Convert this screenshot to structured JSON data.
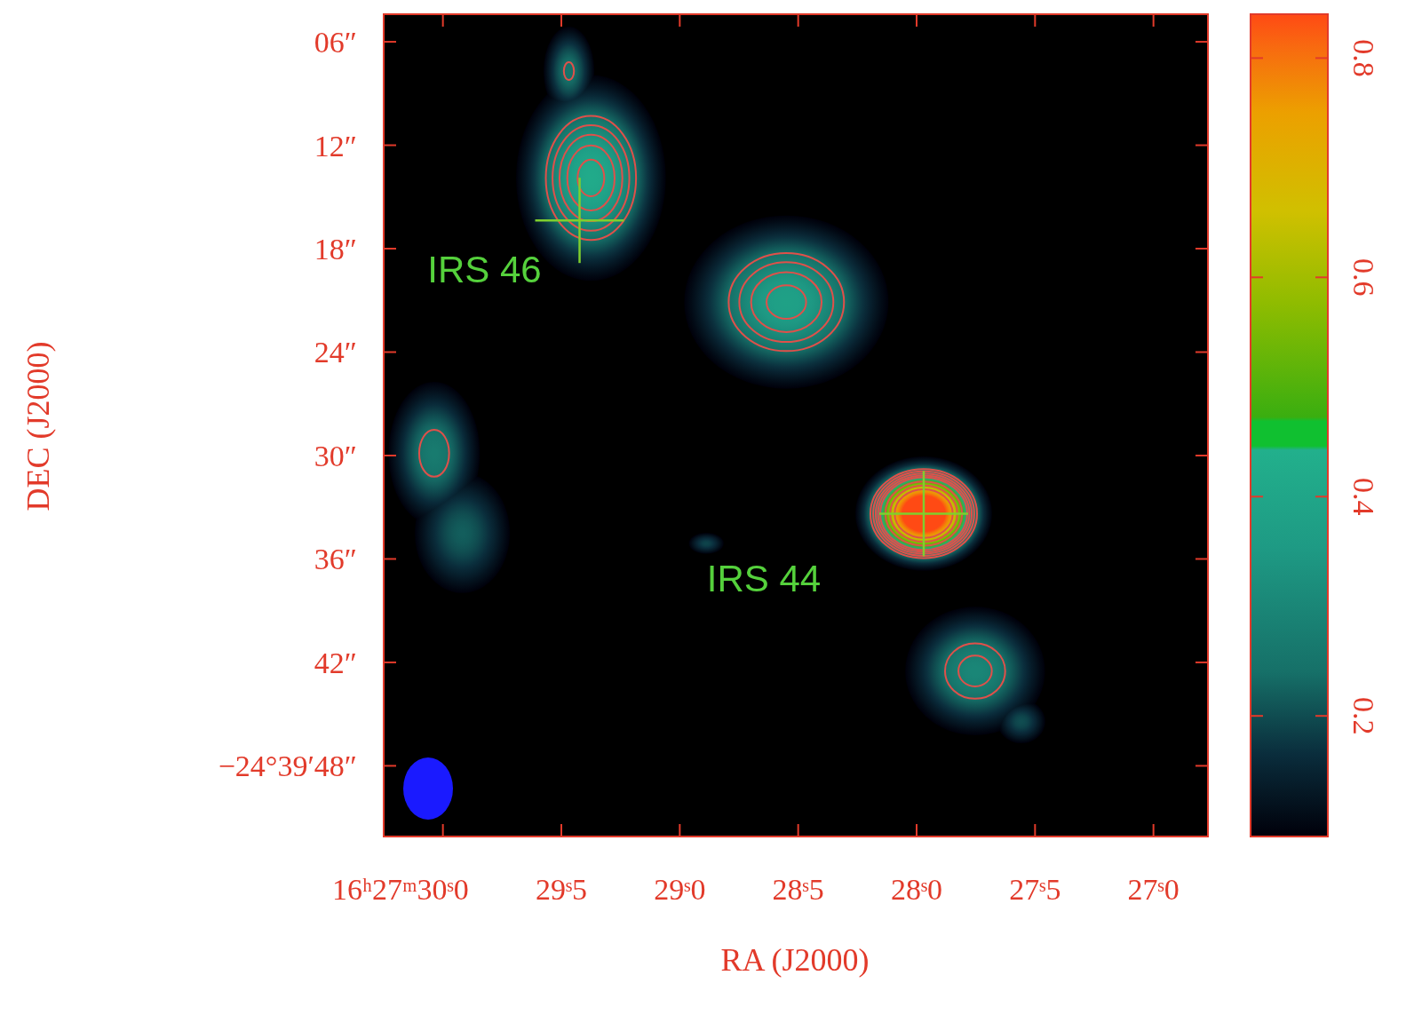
{
  "chart_data": {
    "type": "contour_image",
    "x_label": "RA (J2000)",
    "y_label": "DEC (J2000)",
    "xlim": [
      30.25,
      26.77
    ],
    "xticks": [
      {
        "value": 30.0,
        "label": "16ʰ27ᵐ30ˢ0"
      },
      {
        "value": 29.5,
        "label": "29ˢ5"
      },
      {
        "value": 29.0,
        "label": "29ˢ0"
      },
      {
        "value": 28.5,
        "label": "28ˢ5"
      },
      {
        "value": 28.0,
        "label": "28ˢ0"
      },
      {
        "value": 27.5,
        "label": "27ˢ5"
      },
      {
        "value": 27.0,
        "label": "27ˢ0"
      }
    ],
    "ylim": [
      4.4,
      52.1
    ],
    "yticks": [
      {
        "value": 6,
        "label": "06″"
      },
      {
        "value": 12,
        "label": "12″"
      },
      {
        "value": 18,
        "label": "18″"
      },
      {
        "value": 24,
        "label": "24″"
      },
      {
        "value": 30,
        "label": "30″"
      },
      {
        "value": 36,
        "label": "36″"
      },
      {
        "value": 42,
        "label": "42″"
      },
      {
        "value": 48,
        "label": "−24°39′48″"
      }
    ],
    "colorbar": {
      "range": [
        0.09,
        0.84
      ],
      "ticks": [
        0.2,
        0.4,
        0.6,
        0.8
      ]
    },
    "contour_levels": [
      0.24,
      0.28,
      0.32,
      0.36,
      0.4,
      0.5,
      0.6,
      0.7
    ],
    "components": [
      {
        "x": 29.468,
        "y": 7.7,
        "peak": 0.25,
        "sigma_x": 0.075,
        "sigma_y": 1.8
      },
      {
        "x": 29.375,
        "y": 13.9,
        "peak": 0.42,
        "sigma_x": 0.18,
        "sigma_y": 3.4
      },
      {
        "x": 28.55,
        "y": 21.1,
        "peak": 0.38,
        "sigma_x": 0.254,
        "sigma_y": 2.96
      },
      {
        "x": 27.97,
        "y": 33.37,
        "peak": 1.1,
        "sigma_x": 0.129,
        "sigma_y": 1.48
      },
      {
        "x": 30.037,
        "y": 29.87,
        "peak": 0.27,
        "sigma_x": 0.13,
        "sigma_y": 2.8
      },
      {
        "x": 29.918,
        "y": 34.5,
        "peak": 0.22,
        "sigma_x": 0.15,
        "sigma_y": 2.6
      },
      {
        "x": 27.753,
        "y": 42.5,
        "peak": 0.3,
        "sigma_x": 0.19,
        "sigma_y": 2.4
      },
      {
        "x": 27.558,
        "y": 45.43,
        "peak": 0.2,
        "sigma_x": 0.08,
        "sigma_y": 1.0
      },
      {
        "x": 28.888,
        "y": 35.1,
        "peak": 0.19,
        "sigma_x": 0.06,
        "sigma_y": 0.5
      }
    ],
    "markers": [
      {
        "label": "IRS 46",
        "x": 29.423,
        "y": 16.36
      },
      {
        "label": "IRS 44",
        "x": 27.97,
        "y": 33.37
      }
    ],
    "beam": {
      "width": 0.21,
      "height": 3.6
    }
  }
}
